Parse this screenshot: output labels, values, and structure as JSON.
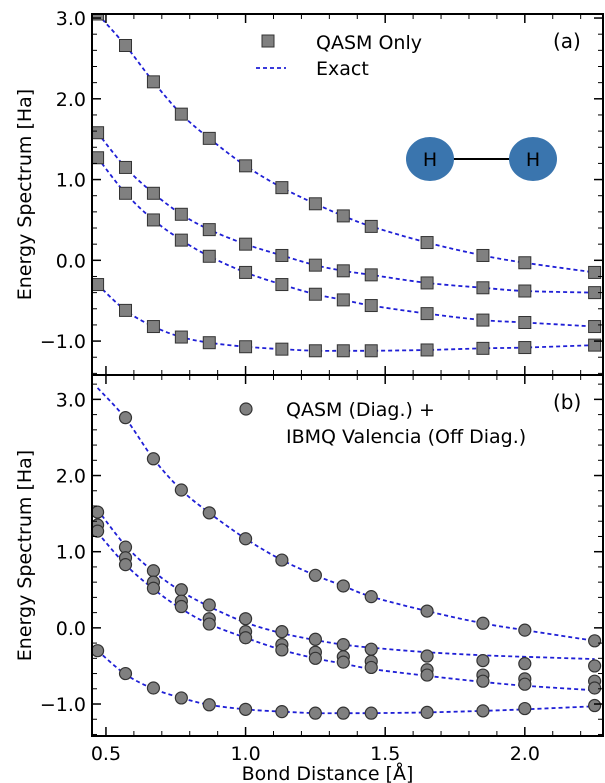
{
  "chart_data": [
    {
      "type": "scatter",
      "panel_label": "(a)",
      "xlabel": "",
      "ylabel": "Energy Spectrum [Ha]",
      "xlim": [
        0.45,
        2.28
      ],
      "ylim": [
        -1.42,
        3.05
      ],
      "xticks": [
        0.5,
        1.0,
        1.5,
        2.0
      ],
      "yticks": [
        -1.0,
        0.0,
        1.0,
        2.0,
        3.0
      ],
      "ytick_labels": [
        "−1.0",
        "0.0",
        "1.0",
        "2.0",
        "3.0"
      ],
      "legend": [
        {
          "label": "QASM Only",
          "marker": "square"
        },
        {
          "label": "Exact",
          "marker": "dashed-line"
        }
      ],
      "legend_position": "top-center",
      "molecule_inset": {
        "atom1": "H",
        "atom2": "H",
        "atom_color": "#3a75ae"
      },
      "x": [
        0.47,
        0.57,
        0.67,
        0.77,
        0.87,
        1.0,
        1.13,
        1.25,
        1.35,
        1.45,
        1.65,
        1.85,
        2.0,
        2.25
      ],
      "series": [
        {
          "name": "QASM Only",
          "marker": "square",
          "color": "#808080",
          "values": [
            3.05,
            2.66,
            2.21,
            1.81,
            1.51,
            1.17,
            0.9,
            0.7,
            0.55,
            0.42,
            0.22,
            0.06,
            -0.03,
            -0.15
          ],
          "x_override": [
            0.47,
            0.57,
            0.67,
            0.77,
            0.87,
            1.0,
            1.13,
            1.25,
            1.35,
            1.45,
            1.65,
            1.85,
            2.0,
            2.25
          ]
        },
        {
          "name": "QASM Only",
          "marker": "square",
          "color": "#808080",
          "values": [
            1.58,
            1.15,
            0.83,
            0.57,
            0.38,
            0.2,
            0.06,
            -0.06,
            -0.13,
            -0.18,
            -0.28,
            -0.34,
            -0.38,
            -0.4
          ]
        },
        {
          "name": "QASM Only",
          "marker": "square",
          "color": "#808080",
          "values": [
            1.27,
            0.83,
            0.5,
            0.25,
            0.05,
            -0.15,
            -0.3,
            -0.42,
            -0.49,
            -0.56,
            -0.66,
            -0.74,
            -0.77,
            -0.82
          ]
        },
        {
          "name": "QASM Only",
          "marker": "square",
          "color": "#808080",
          "values": [
            -0.3,
            -0.62,
            -0.82,
            -0.95,
            -1.02,
            -1.07,
            -1.1,
            -1.12,
            -1.12,
            -1.12,
            -1.11,
            -1.09,
            -1.08,
            -1.05
          ]
        }
      ],
      "exact_color": "#1f1fd6"
    },
    {
      "type": "scatter",
      "panel_label": "(b)",
      "xlabel": "Bond Distance [Å]",
      "ylabel": "Energy Spectrum [Ha]",
      "xlim": [
        0.45,
        2.28
      ],
      "ylim": [
        -1.42,
        3.32
      ],
      "xticks": [
        0.5,
        1.0,
        1.5,
        2.0
      ],
      "xtick_labels": [
        "0.5",
        "1.0",
        "1.5",
        "2.0"
      ],
      "yticks": [
        -1.0,
        0.0,
        1.0,
        2.0,
        3.0
      ],
      "ytick_labels": [
        "−1.0",
        "0.0",
        "1.0",
        "2.0",
        "3.0"
      ],
      "legend": [
        {
          "label": "QASM (Diag.) +",
          "marker": "circle"
        },
        {
          "label": "IBMQ Valencia (Off Diag.)",
          "marker": "none"
        }
      ],
      "legend_position": "top-center",
      "exact_color": "#1f1fd6",
      "exact_curves": [
        [
          3.15,
          2.75,
          2.22,
          1.81,
          1.51,
          1.17,
          0.89,
          0.69,
          0.55,
          0.41,
          0.22,
          0.06,
          -0.03,
          -0.17
        ],
        [
          1.55,
          1.08,
          0.74,
          0.48,
          0.28,
          0.07,
          -0.07,
          -0.16,
          -0.22,
          -0.26,
          -0.32,
          -0.36,
          -0.38,
          -0.41
        ],
        [
          1.25,
          0.83,
          0.51,
          0.25,
          0.05,
          -0.13,
          -0.29,
          -0.4,
          -0.47,
          -0.54,
          -0.63,
          -0.71,
          -0.76,
          -0.82
        ],
        [
          -0.3,
          -0.61,
          -0.8,
          -0.92,
          -1.01,
          -1.07,
          -1.1,
          -1.12,
          -1.12,
          -1.12,
          -1.11,
          -1.09,
          -1.07,
          -1.03
        ]
      ],
      "points": [
        {
          "x": 0.47,
          "y": [
            1.52,
            1.35,
            1.27,
            -0.3
          ]
        },
        {
          "x": 0.57,
          "y": [
            2.76,
            1.06,
            0.92,
            0.83,
            -0.6
          ]
        },
        {
          "x": 0.67,
          "y": [
            2.22,
            0.75,
            0.6,
            0.52,
            -0.79
          ]
        },
        {
          "x": 0.77,
          "y": [
            1.81,
            0.5,
            0.35,
            0.28,
            -0.92
          ]
        },
        {
          "x": 0.87,
          "y": [
            1.51,
            0.3,
            0.12,
            0.05,
            -1.01
          ]
        },
        {
          "x": 1.0,
          "y": [
            1.17,
            0.12,
            -0.05,
            -0.13,
            -1.07
          ]
        },
        {
          "x": 1.13,
          "y": [
            0.89,
            -0.05,
            -0.22,
            -0.29,
            -1.1
          ]
        },
        {
          "x": 1.25,
          "y": [
            0.69,
            -0.15,
            -0.32,
            -0.4,
            -1.12
          ]
        },
        {
          "x": 1.35,
          "y": [
            0.55,
            -0.22,
            -0.38,
            -0.45,
            -1.12
          ]
        },
        {
          "x": 1.45,
          "y": [
            0.41,
            -0.28,
            -0.44,
            -0.52,
            -1.12
          ]
        },
        {
          "x": 1.65,
          "y": [
            0.22,
            -0.37,
            -0.55,
            -0.62,
            -1.11
          ]
        },
        {
          "x": 1.85,
          "y": [
            0.06,
            -0.43,
            -0.62,
            -0.7,
            -1.09
          ]
        },
        {
          "x": 2.0,
          "y": [
            -0.03,
            -0.47,
            -0.67,
            -0.74,
            -1.06
          ]
        },
        {
          "x": 2.25,
          "y": [
            -0.17,
            -0.5,
            -0.7,
            -0.79,
            -1.02
          ]
        }
      ]
    }
  ]
}
